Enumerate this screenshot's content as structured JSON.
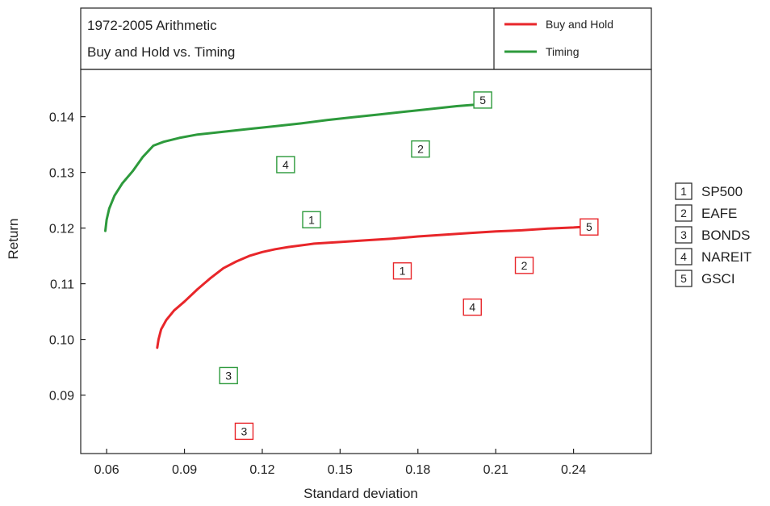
{
  "chart_data": {
    "type": "line",
    "title_lines": [
      "1972-2005 Arithmetic",
      "Buy and Hold vs. Timing"
    ],
    "xlabel": "Standard deviation",
    "ylabel": "Return",
    "xlim": [
      0.05,
      0.27
    ],
    "ylim": [
      0.0795,
      0.1485
    ],
    "x_ticks": [
      0.06,
      0.09,
      0.12,
      0.15,
      0.18,
      0.21,
      0.24
    ],
    "x_tick_labels": [
      "0.06",
      "0.09",
      "0.12",
      "0.15",
      "0.18",
      "0.21",
      "0.24"
    ],
    "y_ticks": [
      0.09,
      0.1,
      0.11,
      0.12,
      0.13,
      0.14
    ],
    "y_tick_labels": [
      "0.09",
      "0.10",
      "0.11",
      "0.12",
      "0.13",
      "0.14"
    ],
    "grid": false,
    "series": [
      {
        "name": "Buy and Hold",
        "color": "#e8262a",
        "x": [
          0.0795,
          0.08,
          0.081,
          0.083,
          0.086,
          0.09,
          0.095,
          0.1,
          0.105,
          0.11,
          0.115,
          0.12,
          0.125,
          0.13,
          0.14,
          0.15,
          0.16,
          0.17,
          0.18,
          0.19,
          0.2,
          0.21,
          0.22,
          0.23,
          0.24,
          0.2432
        ],
        "y": [
          0.0985,
          0.1,
          0.1018,
          0.1035,
          0.1052,
          0.1068,
          0.109,
          0.111,
          0.1128,
          0.114,
          0.115,
          0.1157,
          0.1162,
          0.1166,
          0.1172,
          0.1175,
          0.1178,
          0.1181,
          0.1185,
          0.1188,
          0.1191,
          0.1194,
          0.1196,
          0.1199,
          0.1201,
          0.1202
        ]
      },
      {
        "name": "Timing",
        "color": "#2d9a3c",
        "x": [
          0.0595,
          0.06,
          0.061,
          0.063,
          0.066,
          0.07,
          0.074,
          0.078,
          0.082,
          0.088,
          0.095,
          0.105,
          0.115,
          0.125,
          0.135,
          0.145,
          0.155,
          0.165,
          0.175,
          0.185,
          0.195,
          0.2,
          0.203
        ],
        "y": [
          0.1195,
          0.1215,
          0.1235,
          0.1258,
          0.128,
          0.1302,
          0.1328,
          0.1348,
          0.1355,
          0.1362,
          0.1368,
          0.1373,
          0.1378,
          0.1383,
          0.1388,
          0.1394,
          0.1399,
          0.1404,
          0.1409,
          0.1414,
          0.1419,
          0.1421,
          0.1422
        ]
      }
    ],
    "markers": [
      {
        "series": "Timing",
        "label": "1",
        "x": 0.139,
        "y": 0.1215
      },
      {
        "series": "Timing",
        "label": "2",
        "x": 0.181,
        "y": 0.1342
      },
      {
        "series": "Timing",
        "label": "3",
        "x": 0.107,
        "y": 0.0935
      },
      {
        "series": "Timing",
        "label": "4",
        "x": 0.129,
        "y": 0.1314
      },
      {
        "series": "Timing",
        "label": "5",
        "x": 0.205,
        "y": 0.143
      },
      {
        "series": "Buy and Hold",
        "label": "1",
        "x": 0.174,
        "y": 0.1123
      },
      {
        "series": "Buy and Hold",
        "label": "2",
        "x": 0.221,
        "y": 0.1133
      },
      {
        "series": "Buy and Hold",
        "label": "3",
        "x": 0.113,
        "y": 0.0835
      },
      {
        "series": "Buy and Hold",
        "label": "4",
        "x": 0.201,
        "y": 0.1058
      },
      {
        "series": "Buy and Hold",
        "label": "5",
        "x": 0.246,
        "y": 0.1202
      }
    ],
    "legend": {
      "position": "top-right",
      "entries": [
        {
          "label": "Buy and Hold",
          "color": "#e8262a"
        },
        {
          "label": "Timing",
          "color": "#2d9a3c"
        }
      ]
    },
    "key": {
      "position": "right",
      "entries": [
        {
          "num": "1",
          "name": "SP500"
        },
        {
          "num": "2",
          "name": "EAFE"
        },
        {
          "num": "3",
          "name": "BONDS"
        },
        {
          "num": "4",
          "name": "NAREIT"
        },
        {
          "num": "5",
          "name": "GSCI"
        }
      ]
    }
  }
}
